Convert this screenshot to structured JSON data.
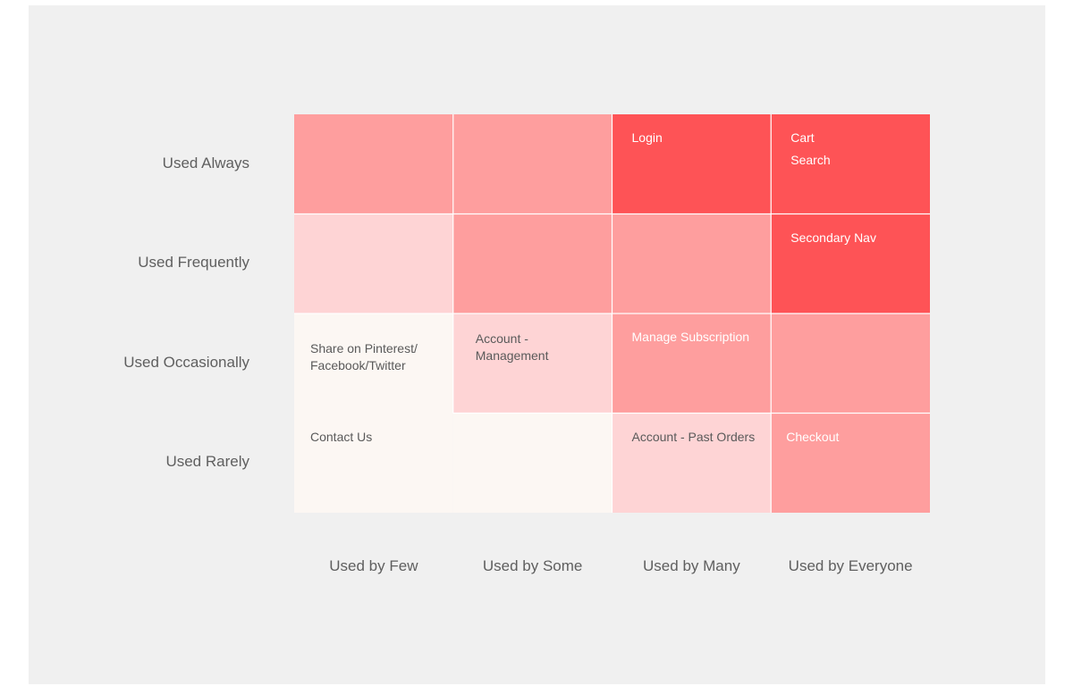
{
  "palette": {
    "background": "#f0f0f0",
    "divider": "#ffffff",
    "level_0": "#fcf7f3",
    "level_1": "#fed4d5",
    "level_2": "#fe9e9e",
    "level_3": "#fe5356",
    "dark_text": "#5a5a5a",
    "light_text": "#ffffff"
  },
  "chart_data": {
    "type": "heatmap",
    "y_categories": [
      "Used Always",
      "Used Frequently",
      "Used Occasionally",
      "Used Rarely"
    ],
    "x_categories": [
      "Used by Few",
      "Used by Some",
      "Used by Many",
      "Used by Everyone"
    ],
    "levels": [
      [
        2,
        2,
        3,
        3
      ],
      [
        1,
        2,
        2,
        3
      ],
      [
        0,
        1,
        2,
        2
      ],
      [
        0,
        0,
        1,
        2
      ]
    ],
    "labels": [
      [
        [],
        [],
        [
          "Login"
        ],
        [
          "Cart",
          "Search"
        ]
      ],
      [
        [],
        [],
        [],
        [
          "Secondary Nav"
        ]
      ],
      [
        [
          "Share on Pinterest/\nFacebook/Twitter"
        ],
        [
          "Account -\nManagement"
        ],
        [
          "Manage Subscription"
        ],
        []
      ],
      [
        [
          "Contact Us"
        ],
        [],
        [
          "Account - Past Orders"
        ],
        [
          "Checkout"
        ]
      ]
    ]
  }
}
